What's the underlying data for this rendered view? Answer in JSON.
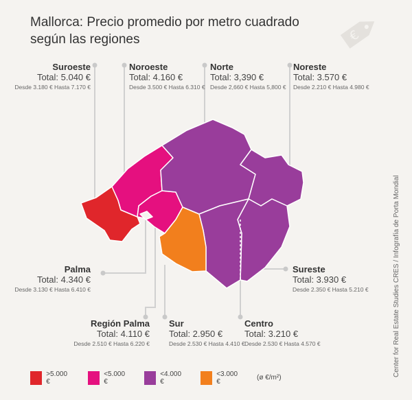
{
  "title": "Mallorca: Precio promedio por metro cuadrado según las regiones",
  "credit": "Center for Real Estate Studies CRES / Infografía de Porta Mondial",
  "colors": {
    "red": "#e0262b",
    "pink": "#e5107f",
    "purple": "#993d9b",
    "orange": "#f27f1d",
    "line": "#d0d0d0"
  },
  "regions": {
    "suroeste": {
      "name": "Suroeste",
      "total": "Total: 5.040 €",
      "range": "Desde 3.180 € Hasta 7.170 €"
    },
    "noroeste": {
      "name": "Noroeste",
      "total": "Total: 4.160 €",
      "range": "Desde 3.500 € Hasta 6.310 €"
    },
    "norte": {
      "name": "Norte",
      "total": "Total: 3,390 €",
      "range": "Desde 2,660 € Hasta 5,800 €"
    },
    "noreste": {
      "name": "Noreste",
      "total": "Total: 3.570 €",
      "range": "Desde 2.210 € Hasta 4.980 €"
    },
    "palma": {
      "name": "Palma",
      "total": "Total: 4.340 €",
      "range": "Desde 3.130 € Hasta 6.410 €"
    },
    "sureste": {
      "name": "Sureste",
      "total": "Total: 3.930 €",
      "range": "Desde 2.350 € Hasta 5.210 €"
    },
    "region_palma": {
      "name": "Región Palma",
      "total": "Total: 4.110 €",
      "range": "Desde 2.510 € Hasta 6.220 €"
    },
    "sur": {
      "name": "Sur",
      "total": "Total: 2.950 €",
      "range": "Desde 2.530 € Hasta 4.410 €"
    },
    "centro": {
      "name": "Centro",
      "total": "Total: 3.210 €",
      "range": "Desde 2.530 € Hasta 4.570 €"
    }
  },
  "legend": [
    {
      "label": ">5.000 €",
      "color": "#e0262b"
    },
    {
      "label": "<5.000 €",
      "color": "#e5107f"
    },
    {
      "label": "<4.000 €",
      "color": "#993d9b"
    },
    {
      "label": "<3.000 €",
      "color": "#f27f1d"
    }
  ],
  "unit": "(ø €/m²)",
  "icons": {
    "tag": "euro-price-tag-icon"
  }
}
